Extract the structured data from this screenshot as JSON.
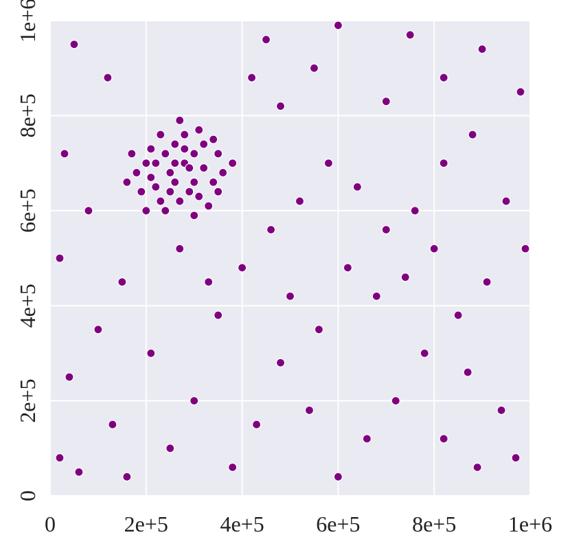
{
  "chart_data": {
    "type": "scatter",
    "color": "#800080",
    "grid": true,
    "xlim": [
      0,
      1000000
    ],
    "ylim": [
      0,
      1000000
    ],
    "xticks": [
      0,
      {
        "value": 200000,
        "label": "2e+5"
      },
      {
        "value": 400000,
        "label": "4e+5"
      },
      {
        "value": 600000,
        "label": "6e+5"
      },
      {
        "value": 800000,
        "label": "8e+5"
      },
      {
        "value": 1000000,
        "label": "1e+6"
      }
    ],
    "yticks": [
      0,
      {
        "value": 200000,
        "label": "2e+5"
      },
      {
        "value": 400000,
        "label": "4e+5"
      },
      {
        "value": 600000,
        "label": "6e+5"
      },
      {
        "value": 800000,
        "label": "8e+5"
      },
      {
        "value": 1000000,
        "label": "1e+6"
      }
    ],
    "x": [
      280000,
      250000,
      300000,
      220000,
      320000,
      260000,
      200000,
      340000,
      290000,
      230000,
      310000,
      270000,
      350000,
      180000,
      240000,
      330000,
      210000,
      300000,
      260000,
      190000,
      360000,
      280000,
      220000,
      320000,
      250000,
      170000,
      290000,
      230000,
      340000,
      210000,
      270000,
      310000,
      200000,
      380000,
      240000,
      300000,
      160000,
      350000,
      260000,
      280000,
      50000,
      120000,
      450000,
      600000,
      750000,
      900000,
      980000,
      820000,
      700000,
      550000,
      480000,
      420000,
      30000,
      80000,
      20000,
      150000,
      100000,
      40000,
      130000,
      60000,
      210000,
      250000,
      300000,
      350000,
      400000,
      460000,
      520000,
      580000,
      640000,
      700000,
      760000,
      820000,
      880000,
      950000,
      990000,
      910000,
      850000,
      780000,
      720000,
      660000,
      600000,
      540000,
      480000,
      430000,
      380000,
      330000,
      270000,
      500000,
      560000,
      620000,
      680000,
      740000,
      800000,
      870000,
      940000,
      970000,
      890000,
      820000,
      160000,
      20000
    ],
    "values": [
      700000,
      680000,
      720000,
      650000,
      690000,
      740000,
      700000,
      660000,
      640000,
      760000,
      770000,
      620000,
      720000,
      680000,
      600000,
      610000,
      730000,
      660000,
      700000,
      640000,
      680000,
      760000,
      700000,
      740000,
      640000,
      720000,
      690000,
      620000,
      750000,
      670000,
      790000,
      630000,
      600000,
      700000,
      720000,
      590000,
      660000,
      640000,
      660000,
      730000,
      950000,
      880000,
      960000,
      990000,
      970000,
      940000,
      850000,
      880000,
      830000,
      900000,
      820000,
      880000,
      720000,
      600000,
      500000,
      450000,
      350000,
      250000,
      150000,
      50000,
      300000,
      100000,
      200000,
      380000,
      480000,
      560000,
      620000,
      700000,
      650000,
      560000,
      600000,
      700000,
      760000,
      620000,
      520000,
      450000,
      380000,
      300000,
      200000,
      120000,
      40000,
      180000,
      280000,
      150000,
      60000,
      450000,
      520000,
      420000,
      350000,
      480000,
      420000,
      460000,
      520000,
      260000,
      180000,
      80000,
      60000,
      120000,
      40000,
      80000
    ]
  }
}
